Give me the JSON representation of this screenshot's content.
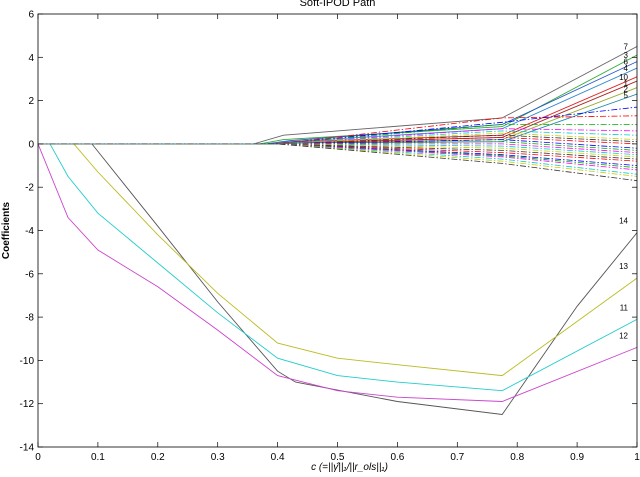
{
  "chart_data": {
    "type": "line",
    "title": "Soft-IPOD Path",
    "xlabel": "c (=||γ̂||₁/||r_ols||₁)",
    "ylabel": "Coefficients",
    "xlim": [
      0,
      1
    ],
    "ylim": [
      -14,
      6
    ],
    "xticks": [
      "0",
      "0.1",
      "0.2",
      "0.3",
      "0.4",
      "0.5",
      "0.6",
      "0.7",
      "0.8",
      "0.9",
      "1"
    ],
    "yticks": [
      "6",
      "4",
      "2",
      "0",
      "-2",
      "-4",
      "-6",
      "-8",
      "-10",
      "-12",
      "-14"
    ],
    "grid": false,
    "series": [
      {
        "name": "14",
        "color": "#555555",
        "style": "solid",
        "x": [
          0,
          0.09,
          0.2,
          0.3,
          0.4,
          0.43,
          0.6,
          0.775,
          0.9,
          1.0
        ],
        "y": [
          0,
          0,
          -3.8,
          -7.3,
          -10.5,
          -11.0,
          -11.9,
          -12.5,
          -7.5,
          -4.1
        ]
      },
      {
        "name": "13",
        "color": "#bbbb22",
        "style": "solid",
        "x": [
          0,
          0.06,
          0.1,
          0.2,
          0.3,
          0.4,
          0.5,
          0.6,
          0.775,
          1.0
        ],
        "y": [
          0,
          0,
          -1.3,
          -4.2,
          -6.9,
          -9.2,
          -9.9,
          -10.2,
          -10.7,
          -6.2
        ]
      },
      {
        "name": "11",
        "color": "#22cccc",
        "style": "solid",
        "x": [
          0,
          0.02,
          0.05,
          0.1,
          0.2,
          0.3,
          0.4,
          0.5,
          0.6,
          0.775,
          1.0
        ],
        "y": [
          0,
          0,
          -1.5,
          -3.2,
          -5.5,
          -7.8,
          -9.9,
          -10.7,
          -11.0,
          -11.4,
          -8.1
        ]
      },
      {
        "name": "12",
        "color": "#cc44cc",
        "style": "solid",
        "x": [
          0,
          0.05,
          0.1,
          0.2,
          0.3,
          0.4,
          0.5,
          0.6,
          0.775,
          1.0
        ],
        "y": [
          0,
          -3.4,
          -4.9,
          -6.6,
          -8.6,
          -10.7,
          -11.4,
          -11.7,
          -11.9,
          -9.4
        ]
      },
      {
        "name": "7",
        "color": "#666666",
        "style": "solid",
        "x": [
          0,
          0.36,
          0.41,
          0.775,
          1.0
        ],
        "y": [
          0,
          0,
          0.4,
          1.2,
          4.5
        ]
      },
      {
        "name": "3",
        "color": "#33aa33",
        "style": "solid",
        "x": [
          0,
          0.37,
          0.41,
          0.775,
          1.0
        ],
        "y": [
          0,
          0,
          0.2,
          0.8,
          4.1
        ]
      },
      {
        "name": "6",
        "color": "#2255cc",
        "style": "solid",
        "x": [
          0,
          0.38,
          0.42,
          0.775,
          1.0
        ],
        "y": [
          0,
          0,
          0.15,
          0.9,
          3.8
        ]
      },
      {
        "name": "4",
        "color": "#3388cc",
        "style": "solid",
        "x": [
          0,
          0.38,
          0.42,
          0.775,
          1.0
        ],
        "y": [
          0,
          0,
          0.1,
          0.7,
          3.5
        ]
      },
      {
        "name": "10",
        "color": "#dd2222",
        "style": "solid",
        "x": [
          0,
          0.39,
          0.43,
          0.775,
          1.0
        ],
        "y": [
          0,
          0,
          0.1,
          0.4,
          3.1
        ]
      },
      {
        "name": "1",
        "color": "#aa2222",
        "style": "solid",
        "x": [
          0,
          0.39,
          0.43,
          0.775,
          1.0
        ],
        "y": [
          0,
          0,
          0.05,
          0.3,
          2.9
        ]
      },
      {
        "name": "2",
        "color": "#99aa33",
        "style": "solid",
        "x": [
          0,
          0.4,
          0.44,
          0.775,
          1.0
        ],
        "y": [
          0,
          0,
          0.05,
          0.2,
          2.6
        ]
      },
      {
        "name": "5",
        "color": "#2288aa",
        "style": "solid",
        "x": [
          0,
          0.4,
          0.44,
          0.775,
          1.0
        ],
        "y": [
          0,
          0,
          0.05,
          0.1,
          2.3
        ]
      },
      {
        "name": "",
        "color": "#ff0000",
        "style": "dashdot",
        "x": [
          0,
          0.4,
          0.775,
          1.0
        ],
        "y": [
          0,
          0,
          1.2,
          1.3
        ]
      },
      {
        "name": "",
        "color": "#0000ff",
        "style": "dashdot",
        "x": [
          0,
          0.4,
          0.775,
          1.0
        ],
        "y": [
          0,
          0,
          1.0,
          1.7
        ]
      },
      {
        "name": "",
        "color": "#00aa00",
        "style": "dashdot",
        "x": [
          0,
          0.4,
          0.775,
          1.0
        ],
        "y": [
          0,
          0,
          0.9,
          0.9
        ]
      },
      {
        "name": "",
        "color": "#ff00ff",
        "style": "dashdot",
        "x": [
          0,
          0.4,
          0.775,
          1.0
        ],
        "y": [
          0,
          0,
          0.7,
          0.6
        ]
      },
      {
        "name": "",
        "color": "#00cccc",
        "style": "dashdot",
        "x": [
          0,
          0.4,
          0.775,
          1.0
        ],
        "y": [
          0,
          0,
          0.6,
          0.4
        ]
      },
      {
        "name": "",
        "color": "#cccc00",
        "style": "dashdot",
        "x": [
          0,
          0.4,
          0.775,
          1.0
        ],
        "y": [
          0,
          0,
          0.5,
          0.2
        ]
      },
      {
        "name": "",
        "color": "#333333",
        "style": "dashdot",
        "x": [
          0,
          0.4,
          0.775,
          1.0
        ],
        "y": [
          0,
          0,
          0.4,
          0.1
        ]
      },
      {
        "name": "",
        "color": "#ff0000",
        "style": "dashdot",
        "x": [
          0,
          0.4,
          0.775,
          1.0
        ],
        "y": [
          0,
          0,
          0.3,
          0.0
        ]
      },
      {
        "name": "",
        "color": "#0000ff",
        "style": "dashdot",
        "x": [
          0,
          0.4,
          0.775,
          1.0
        ],
        "y": [
          0,
          0,
          0.2,
          -0.2
        ]
      },
      {
        "name": "",
        "color": "#00aa00",
        "style": "dashdot",
        "x": [
          0,
          0.4,
          0.775,
          1.0
        ],
        "y": [
          0,
          0,
          0.1,
          -0.3
        ]
      },
      {
        "name": "",
        "color": "#ff00ff",
        "style": "dashdot",
        "x": [
          0,
          0.4,
          0.775,
          1.0
        ],
        "y": [
          0,
          0,
          0.0,
          -0.4
        ]
      },
      {
        "name": "",
        "color": "#00cccc",
        "style": "dashdot",
        "x": [
          0,
          0.4,
          0.775,
          1.0
        ],
        "y": [
          0,
          0,
          -0.1,
          -0.5
        ]
      },
      {
        "name": "",
        "color": "#cccc00",
        "style": "dashdot",
        "x": [
          0,
          0.4,
          0.775,
          1.0
        ],
        "y": [
          0,
          0,
          -0.2,
          -0.6
        ]
      },
      {
        "name": "",
        "color": "#333333",
        "style": "dashdot",
        "x": [
          0,
          0.4,
          0.775,
          1.0
        ],
        "y": [
          0,
          0,
          -0.3,
          -0.7
        ]
      },
      {
        "name": "",
        "color": "#ff0000",
        "style": "dashdot",
        "x": [
          0,
          0.4,
          0.775,
          1.0
        ],
        "y": [
          0,
          0,
          -0.4,
          -0.8
        ]
      },
      {
        "name": "",
        "color": "#0000ff",
        "style": "dashdot",
        "x": [
          0,
          0.4,
          0.775,
          1.0
        ],
        "y": [
          0,
          0,
          -0.5,
          -1.0
        ]
      },
      {
        "name": "",
        "color": "#00aa00",
        "style": "dashdot",
        "x": [
          0,
          0.4,
          0.775,
          1.0
        ],
        "y": [
          0,
          0,
          -0.55,
          -1.1
        ]
      },
      {
        "name": "",
        "color": "#ff00ff",
        "style": "dashdot",
        "x": [
          0,
          0.4,
          0.775,
          1.0
        ],
        "y": [
          0,
          0,
          -0.6,
          -1.2
        ]
      },
      {
        "name": "",
        "color": "#00cccc",
        "style": "dashdot",
        "x": [
          0,
          0.4,
          0.775,
          1.0
        ],
        "y": [
          0,
          0,
          -0.7,
          -1.4
        ]
      },
      {
        "name": "",
        "color": "#cccc00",
        "style": "dashdot",
        "x": [
          0,
          0.4,
          0.775,
          1.0
        ],
        "y": [
          0,
          0,
          -0.8,
          -1.5
        ]
      },
      {
        "name": "",
        "color": "#333333",
        "style": "dashdot",
        "x": [
          0,
          0.4,
          0.775,
          1.0
        ],
        "y": [
          0,
          0,
          -0.9,
          -1.7
        ]
      }
    ]
  }
}
